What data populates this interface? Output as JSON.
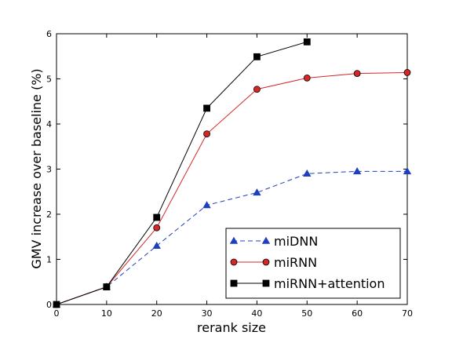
{
  "chart_data": {
    "type": "line",
    "xlabel": "rerank size",
    "ylabel": "GMV increase over baseline (%)",
    "xlim": [
      0,
      70
    ],
    "ylim": [
      0,
      6
    ],
    "xticks": [
      0,
      10,
      20,
      30,
      40,
      50,
      60,
      70
    ],
    "yticks": [
      0,
      1,
      2,
      3,
      4,
      5,
      6
    ],
    "grid": false,
    "legend_position": "lower-right",
    "series": [
      {
        "name": "miDNN",
        "color": "#1f3fbf",
        "marker": "triangle",
        "linestyle": "dashed",
        "x": [
          0,
          10,
          20,
          30,
          40,
          50,
          60,
          70
        ],
        "y": [
          0,
          0.39,
          1.3,
          2.2,
          2.48,
          2.9,
          2.95,
          2.95
        ]
      },
      {
        "name": "miRNN",
        "color": "#d62728",
        "marker": "circle",
        "linestyle": "solid",
        "x": [
          0,
          10,
          20,
          30,
          40,
          50,
          60,
          70
        ],
        "y": [
          0,
          0.39,
          1.7,
          3.78,
          4.77,
          5.02,
          5.12,
          5.14
        ]
      },
      {
        "name": "miRNN+attention",
        "color": "#000000",
        "marker": "square",
        "linestyle": "solid",
        "x": [
          0,
          10,
          20,
          30,
          40,
          50
        ],
        "y": [
          0,
          0.39,
          1.93,
          4.35,
          5.49,
          5.82
        ]
      }
    ]
  }
}
